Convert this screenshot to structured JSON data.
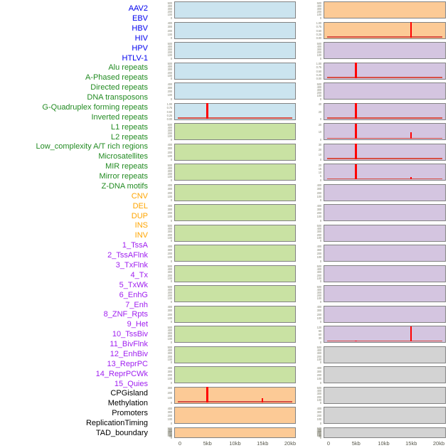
{
  "figure": {
    "description": "Feature density tracks around sites, 44 small-multiple panels in two columns sharing a 0-20kb x axis",
    "x_axis": {
      "tick_labels": [
        "0",
        "5kb",
        "10kb",
        "15kb",
        "20kb"
      ],
      "tick_kb": [
        0,
        5,
        10,
        15,
        20
      ],
      "range_kb": [
        0,
        20
      ]
    }
  },
  "colors": {
    "spike_red": "#ff0000",
    "baseline_red": "#d65045",
    "panel_border": "#828282",
    "ytick_text": "#8a8a7c",
    "axis_text": "#57574b",
    "categories": {
      "virus": {
        "label": "#0000ee",
        "panel": "#cbe4ef"
      },
      "repeat": {
        "label": "#228b22",
        "panel": "#c9e2a3"
      },
      "structural_variant": {
        "label": "#ffa500",
        "panel": "#fcca96"
      },
      "chromatin_state": {
        "label": "#a020f0",
        "panel": "#d4c5e0"
      },
      "other": {
        "label": "#000000",
        "panel": "#d3d3d3"
      }
    }
  },
  "chart_data": {
    "type": "bar",
    "layout": "44 tracks stacked as labels on the left; panels drawn in 2 columns of 22 (tracks 1-22 left column, 23-44 right column); each panel x range 0-20kb; red bars mark enriched positions; legend none; grid off",
    "x_tick_labels": [
      "0",
      "5kb",
      "10kb",
      "15kb",
      "20kb"
    ],
    "tracks": [
      {
        "label": "AAV2",
        "category": "virus",
        "yticks": [
          "500",
          "400",
          "300",
          "200",
          "100",
          "0"
        ],
        "bars": [],
        "baseline": false
      },
      {
        "label": "EBV",
        "category": "virus",
        "yticks": [
          "400",
          "300",
          "200",
          "100",
          "0"
        ],
        "bars": [],
        "baseline": false
      },
      {
        "label": "HBV",
        "category": "virus",
        "yticks": [
          "500",
          "400",
          "300",
          "200",
          "100",
          "0"
        ],
        "bars": [],
        "baseline": false
      },
      {
        "label": "HIV",
        "category": "virus",
        "yticks": [
          "500",
          "400",
          "300",
          "200",
          "100",
          "0"
        ],
        "bars": [],
        "baseline": false
      },
      {
        "label": "HPV",
        "category": "virus",
        "yticks": [
          "400",
          "300",
          "200",
          "100",
          "0"
        ],
        "bars": [],
        "baseline": false
      },
      {
        "label": "HTLV-1",
        "category": "virus",
        "yticks": [
          "1.00",
          "0.75",
          "0.50",
          "0.25",
          "0.00"
        ],
        "bars": [
          {
            "x_kb": 5,
            "value": 1.0,
            "frac": 1.0
          }
        ],
        "baseline": true
      },
      {
        "label": "Alu repeats",
        "category": "repeat",
        "yticks": [
          "500",
          "400",
          "300",
          "200",
          "100",
          "0"
        ],
        "bars": [],
        "baseline": false
      },
      {
        "label": "A-Phased repeats",
        "category": "repeat",
        "yticks": [
          "400",
          "300",
          "200",
          "100",
          "0"
        ],
        "bars": [],
        "baseline": false
      },
      {
        "label": "Directed repeats",
        "category": "repeat",
        "yticks": [
          "500",
          "400",
          "300",
          "200",
          "100",
          "0"
        ],
        "bars": [],
        "baseline": false
      },
      {
        "label": "DNA transposons",
        "category": "repeat",
        "yticks": [
          "400",
          "300",
          "200",
          "100",
          "0"
        ],
        "bars": [],
        "baseline": false
      },
      {
        "label": "G-Quadruplex forming repeats",
        "category": "repeat",
        "yticks": [
          "400",
          "300",
          "200",
          "100",
          "0"
        ],
        "bars": [],
        "baseline": false
      },
      {
        "label": "Inverted repeats",
        "category": "repeat",
        "yticks": [
          "500",
          "400",
          "300",
          "200",
          "100",
          "0"
        ],
        "bars": [],
        "baseline": false
      },
      {
        "label": "L1 repeats",
        "category": "repeat",
        "yticks": [
          "400",
          "300",
          "200",
          "100",
          "0"
        ],
        "bars": [],
        "baseline": false
      },
      {
        "label": "L2 repeats",
        "category": "repeat",
        "yticks": [
          "500",
          "400",
          "300",
          "200",
          "100",
          "0"
        ],
        "bars": [],
        "baseline": false
      },
      {
        "label": "Low_complexity A/T rich regions",
        "category": "repeat",
        "yticks": [
          "500",
          "400",
          "300",
          "200",
          "100",
          "0"
        ],
        "bars": [],
        "baseline": false
      },
      {
        "label": "Microsatellites",
        "category": "repeat",
        "yticks": [
          "400",
          "300",
          "200",
          "100",
          "0"
        ],
        "bars": [],
        "baseline": false
      },
      {
        "label": "MIR repeats",
        "category": "repeat",
        "yticks": [
          "500",
          "400",
          "300",
          "200",
          "100",
          "0"
        ],
        "bars": [],
        "baseline": false
      },
      {
        "label": "Mirror repeats",
        "category": "repeat",
        "yticks": [
          "500",
          "400",
          "300",
          "200",
          "100",
          "0"
        ],
        "bars": [],
        "baseline": false
      },
      {
        "label": "Z-DNA motifs",
        "category": "repeat",
        "yticks": [
          "400",
          "300",
          "200",
          "100",
          "0"
        ],
        "bars": [],
        "baseline": false
      },
      {
        "label": "CNV",
        "category": "structural_variant",
        "yticks": [
          "300",
          "200",
          "100",
          "0"
        ],
        "bars": [
          {
            "x_kb": 5,
            "value": 300,
            "frac": 1.0
          },
          {
            "x_kb": 15,
            "value": 80,
            "frac": 0.27
          }
        ],
        "baseline": true
      },
      {
        "label": "DEL",
        "category": "structural_variant",
        "yticks": [
          "400",
          "300",
          "200",
          "100",
          "0"
        ],
        "bars": [],
        "baseline": false
      },
      {
        "label": "DUP",
        "category": "structural_variant",
        "yticks": [
          "500",
          "450",
          "400",
          "350",
          "300",
          "250",
          "200",
          "150",
          "100",
          "50",
          "0"
        ],
        "bars": [],
        "baseline": false
      },
      {
        "label": "INS",
        "category": "structural_variant",
        "yticks": [
          "500",
          "400",
          "300",
          "200",
          "100",
          "0"
        ],
        "bars": [],
        "baseline": false
      },
      {
        "label": "INV",
        "category": "structural_variant",
        "yticks": [
          "1.00",
          "0.75",
          "0.50",
          "0.25",
          "0.00"
        ],
        "bars": [
          {
            "x_kb": 15,
            "value": 1.0,
            "frac": 1.0
          }
        ],
        "baseline": true
      },
      {
        "label": "1_TssA",
        "category": "chromatin_state",
        "yticks": [
          "500",
          "400",
          "300",
          "200",
          "100",
          "0"
        ],
        "bars": [],
        "baseline": false
      },
      {
        "label": "2_TssAFlnk",
        "category": "chromatin_state",
        "yticks": [
          "1.00",
          "0.75",
          "0.50",
          "0.25",
          "0.00"
        ],
        "bars": [
          {
            "x_kb": 5,
            "value": 1.0,
            "frac": 1.0
          }
        ],
        "baseline": true
      },
      {
        "label": "3_TxFlnk",
        "category": "chromatin_state",
        "yticks": [
          "500",
          "400",
          "300",
          "200",
          "100",
          "0"
        ],
        "bars": [],
        "baseline": false
      },
      {
        "label": "4_Tx",
        "category": "chromatin_state",
        "yticks": [
          "40",
          "20",
          "0"
        ],
        "bars": [
          {
            "x_kb": 5,
            "value": 45,
            "frac": 1.0
          }
        ],
        "baseline": true
      },
      {
        "label": "5_TxWk",
        "category": "chromatin_state",
        "yticks": [
          "20",
          "10",
          "0"
        ],
        "bars": [
          {
            "x_kb": 5,
            "value": 22,
            "frac": 1.0
          },
          {
            "x_kb": 15,
            "value": 10,
            "frac": 0.45
          }
        ],
        "baseline": true
      },
      {
        "label": "6_EnhG",
        "category": "chromatin_state",
        "yticks": [
          "30",
          "20",
          "10",
          "0"
        ],
        "bars": [
          {
            "x_kb": 5,
            "value": 32,
            "frac": 1.0
          }
        ],
        "baseline": true
      },
      {
        "label": "7_Enh",
        "category": "chromatin_state",
        "yticks": [
          "20",
          "15",
          "10",
          "5",
          "0"
        ],
        "bars": [
          {
            "x_kb": 5,
            "value": 21,
            "frac": 1.0
          },
          {
            "x_kb": 15,
            "value": 3,
            "frac": 0.14
          }
        ],
        "baseline": true
      },
      {
        "label": "8_ZNF_Rpts",
        "category": "chromatin_state",
        "yticks": [
          "400",
          "300",
          "200",
          "100",
          "0"
        ],
        "bars": [],
        "baseline": false
      },
      {
        "label": "9_Het",
        "category": "chromatin_state",
        "yticks": [
          "400",
          "300",
          "200",
          "100",
          "0"
        ],
        "bars": [],
        "baseline": false
      },
      {
        "label": "10_TssBiv",
        "category": "chromatin_state",
        "yticks": [
          "500",
          "400",
          "300",
          "200",
          "100",
          "0"
        ],
        "bars": [],
        "baseline": false
      },
      {
        "label": "11_BivFlnk",
        "category": "chromatin_state",
        "yticks": [
          "400",
          "300",
          "200",
          "100",
          "0"
        ],
        "bars": [],
        "baseline": false
      },
      {
        "label": "12_EnhBiv",
        "category": "chromatin_state",
        "yticks": [
          "500",
          "400",
          "300",
          "200",
          "100",
          "0"
        ],
        "bars": [],
        "baseline": false
      },
      {
        "label": "13_ReprPC",
        "category": "chromatin_state",
        "yticks": [
          "500",
          "400",
          "300",
          "200",
          "100",
          "0"
        ],
        "bars": [],
        "baseline": false
      },
      {
        "label": "14_ReprPCWk",
        "category": "chromatin_state",
        "yticks": [
          "400",
          "300",
          "200",
          "100",
          "0"
        ],
        "bars": [],
        "baseline": false
      },
      {
        "label": "15_Quies",
        "category": "chromatin_state",
        "yticks": [
          "120",
          "90",
          "60",
          "30",
          "0"
        ],
        "bars": [
          {
            "x_kb": 5,
            "value": 8,
            "frac": 0.07
          },
          {
            "x_kb": 15,
            "value": 125,
            "frac": 1.0
          }
        ],
        "baseline": true
      },
      {
        "label": "CPGisland",
        "category": "other",
        "yticks": [
          "500",
          "400",
          "300",
          "200",
          "100",
          "0"
        ],
        "bars": [],
        "baseline": false
      },
      {
        "label": "Methylation",
        "category": "other",
        "yticks": [
          "400",
          "300",
          "200",
          "100",
          "0"
        ],
        "bars": [],
        "baseline": false
      },
      {
        "label": "Promoters",
        "category": "other",
        "yticks": [
          "500",
          "400",
          "300",
          "200",
          "100",
          "0"
        ],
        "bars": [],
        "baseline": false
      },
      {
        "label": "ReplicationTiming",
        "category": "other",
        "yticks": [
          "400",
          "300",
          "200",
          "100",
          "0"
        ],
        "bars": [],
        "baseline": false
      },
      {
        "label": "TAD_boundary",
        "category": "other",
        "yticks": [
          "500",
          "450",
          "400",
          "350",
          "300",
          "250",
          "200",
          "150",
          "100",
          "50",
          "0"
        ],
        "bars": [],
        "baseline": false
      }
    ]
  }
}
